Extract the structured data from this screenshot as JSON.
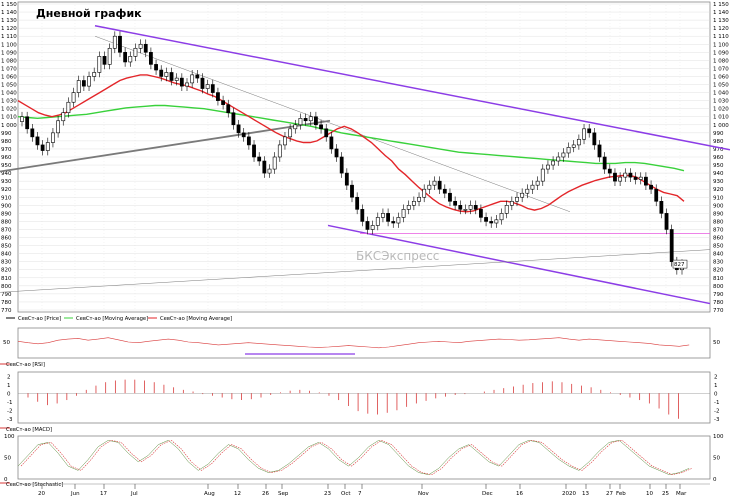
{
  "title": "Дневной график",
  "watermark": "БКСЭкспресс",
  "colors": {
    "bg": "#ffffff",
    "axis": "#000000",
    "grid": "#d9d9d9",
    "ma_short": "#e3262a",
    "ma_long": "#39d13b",
    "channel": "#8c3de6",
    "support": "#7a7a7a",
    "level": "#e75ae0",
    "ind_red": "#d93a3a",
    "watermark": "#b9b9b9"
  },
  "chart_data": [
    {
      "type": "candlestick",
      "price_axis": {
        "ticks": [
          "770",
          "780",
          "790",
          "800",
          "810",
          "820",
          "830",
          "840",
          "850",
          "860",
          "870",
          "880",
          "890",
          "900",
          "910",
          "920",
          "930",
          "940",
          "950",
          "960",
          "970",
          "980",
          "990",
          "1 000",
          "1 010",
          "1 020",
          "1 030",
          "1 040",
          "1 050",
          "1 060",
          "1 070",
          "1 080",
          "1 090",
          "1 100",
          "1 110",
          "1 120",
          "1 130",
          "1 140",
          "1 150"
        ],
        "min": 770,
        "max": 1150
      },
      "last_price_label": "827",
      "x_ticks": [
        "20",
        "Jun",
        "17",
        "Jul",
        "Aug",
        "12",
        "26",
        "Sep",
        "23",
        "Oct",
        "7",
        "Nov",
        "Dec",
        "16",
        "2020",
        "13",
        "27",
        "Feb",
        "10",
        "25",
        "Mar"
      ],
      "legend": [
        {
          "label": "СевСт-ао [Price]",
          "color": "#000000"
        },
        {
          "label": "СевСт-ао [Moving Average]",
          "color": "#39d13b"
        },
        {
          "label": "СевСт-ао [Moving Average]",
          "color": "#e3262a"
        }
      ],
      "closes": [
        1010,
        995,
        985,
        975,
        968,
        978,
        990,
        1005,
        1015,
        1028,
        1040,
        1055,
        1048,
        1060,
        1065,
        1085,
        1075,
        1095,
        1110,
        1090,
        1078,
        1085,
        1095,
        1100,
        1090,
        1075,
        1068,
        1060,
        1065,
        1055,
        1058,
        1048,
        1052,
        1062,
        1058,
        1045,
        1050,
        1040,
        1030,
        1025,
        1015,
        1000,
        990,
        985,
        975,
        960,
        955,
        940,
        945,
        960,
        975,
        985,
        995,
        1000,
        1008,
        1005,
        1010,
        1000,
        995,
        985,
        970,
        960,
        940,
        925,
        910,
        895,
        880,
        870,
        875,
        885,
        890,
        880,
        878,
        885,
        895,
        900,
        905,
        910,
        920,
        925,
        930,
        920,
        915,
        905,
        900,
        895,
        895,
        900,
        895,
        885,
        880,
        878,
        882,
        890,
        900,
        905,
        910,
        915,
        920,
        925,
        930,
        945,
        950,
        955,
        960,
        965,
        972,
        975,
        982,
        995,
        990,
        975,
        960,
        945,
        940,
        930,
        935,
        940,
        935,
        932,
        935,
        925,
        920,
        905,
        890,
        870,
        830,
        820,
        827
      ],
      "ma_short": [
        1030,
        1025,
        1020,
        1015,
        1012,
        1010,
        1012,
        1015,
        1020,
        1025,
        1030,
        1035,
        1040,
        1045,
        1050,
        1055,
        1058,
        1060,
        1062,
        1062,
        1060,
        1058,
        1055,
        1052,
        1050,
        1048,
        1045,
        1042,
        1038,
        1035,
        1030,
        1025,
        1020,
        1015,
        1010,
        1005,
        1000,
        995,
        990,
        986,
        983,
        980,
        978,
        978,
        980,
        985,
        990,
        995,
        998,
        995,
        990,
        984,
        978,
        970,
        962,
        955,
        945,
        938,
        930,
        922,
        915,
        908,
        902,
        898,
        895,
        893,
        892,
        893,
        896,
        899,
        902,
        905,
        905,
        903,
        900,
        896,
        894,
        896,
        900,
        906,
        912,
        917,
        921,
        925,
        928,
        931,
        933,
        935,
        936,
        937,
        937,
        935,
        930,
        925,
        920,
        916,
        914,
        912,
        905
      ],
      "ma_long": [
        1010,
        1009,
        1008,
        1009,
        1010,
        1011,
        1012,
        1013,
        1015,
        1017,
        1019,
        1021,
        1022,
        1023,
        1024,
        1024,
        1023,
        1022,
        1021,
        1020,
        1018,
        1016,
        1014,
        1012,
        1010,
        1008,
        1006,
        1004,
        1002,
        1000,
        998,
        995,
        993,
        990,
        988,
        986,
        984,
        982,
        980,
        978,
        976,
        974,
        972,
        970,
        968,
        966,
        965,
        964,
        963,
        962,
        961,
        960,
        959,
        958,
        957,
        956,
        955,
        954,
        953,
        952,
        952,
        952,
        953,
        953,
        952,
        950,
        948,
        946,
        943
      ],
      "ma_long_color": "#39d13b",
      "ma_short_color": "#e3262a",
      "lines": [
        {
          "name": "channel-top",
          "from": [
            95,
            1123
          ],
          "to": [
            730,
            969
          ]
        },
        {
          "name": "channel-bottom",
          "from": [
            328,
            875
          ],
          "to": [
            710,
            778
          ]
        },
        {
          "name": "support-long",
          "from": [
            0,
            942
          ],
          "to": [
            330,
            1005
          ]
        },
        {
          "name": "support-flat",
          "from": [
            0,
            792
          ],
          "to": [
            710,
            845
          ]
        },
        {
          "name": "diagonal-thin",
          "from": [
            95,
            1110
          ],
          "to": [
            570,
            892
          ]
        },
        {
          "name": "level",
          "from": [
            360,
            865
          ],
          "to": [
            710,
            865
          ]
        }
      ]
    },
    {
      "type": "line",
      "name": "rsi",
      "legend_label": "СевСт-ао [RSI]",
      "y_ticks": [
        "50"
      ],
      "values": [
        52,
        48,
        45,
        48,
        55,
        58,
        60,
        55,
        58,
        62,
        56,
        50,
        48,
        52,
        55,
        58,
        55,
        50,
        48,
        45,
        42,
        44,
        46,
        48,
        46,
        44,
        42,
        40,
        38,
        36,
        35,
        36,
        38,
        40,
        38,
        36,
        34,
        36,
        40,
        44,
        48,
        50,
        52,
        50,
        48,
        52,
        54,
        56,
        58,
        57,
        55,
        56,
        58,
        60,
        62,
        58,
        55,
        58,
        56,
        54,
        52,
        50,
        48,
        46,
        42,
        40,
        38,
        42
      ]
    },
    {
      "type": "bar",
      "name": "macd",
      "legend_label": "СевСт-ао [MACD]",
      "y_ticks": [
        "2",
        "1",
        "0",
        "-1",
        "-2",
        "-3"
      ],
      "values": [
        -0.5,
        -1,
        -1.4,
        -1.2,
        -0.8,
        -0.3,
        0.4,
        0.9,
        1.3,
        1.5,
        1.6,
        1.6,
        1.5,
        1.3,
        1.0,
        0.7,
        0.4,
        0.2,
        -0.1,
        -0.3,
        -0.5,
        -0.7,
        -0.8,
        -0.7,
        -0.5,
        -0.2,
        0.1,
        0.3,
        0.4,
        0.3,
        0.1,
        -0.3,
        -0.8,
        -1.5,
        -2.1,
        -2.4,
        -2.5,
        -2.3,
        -2.0,
        -1.6,
        -1.2,
        -0.9,
        -0.6,
        -0.4,
        -0.2,
        -0.1,
        0.0,
        0.2,
        0.4,
        0.6,
        0.8,
        1.0,
        1.2,
        1.3,
        1.4,
        1.3,
        1.1,
        0.9,
        0.7,
        0.4,
        0.1,
        -0.2,
        -0.5,
        -0.8,
        -1.2,
        -1.8,
        -2.5,
        -3.0
      ]
    },
    {
      "type": "line",
      "name": "stochastic",
      "legend_label": "СевСт-ао [Stochastic]",
      "y_ticks": [
        "100",
        "50",
        "0"
      ],
      "values": [
        30,
        55,
        80,
        85,
        60,
        30,
        20,
        45,
        75,
        90,
        85,
        60,
        40,
        55,
        80,
        90,
        70,
        40,
        20,
        35,
        60,
        80,
        70,
        45,
        25,
        15,
        20,
        35,
        55,
        75,
        85,
        70,
        45,
        30,
        50,
        75,
        90,
        80,
        55,
        30,
        15,
        10,
        25,
        50,
        70,
        80,
        60,
        40,
        30,
        55,
        80,
        90,
        85,
        65,
        45,
        30,
        20,
        40,
        65,
        85,
        90,
        70,
        50,
        30,
        20,
        10,
        15,
        25
      ]
    }
  ]
}
